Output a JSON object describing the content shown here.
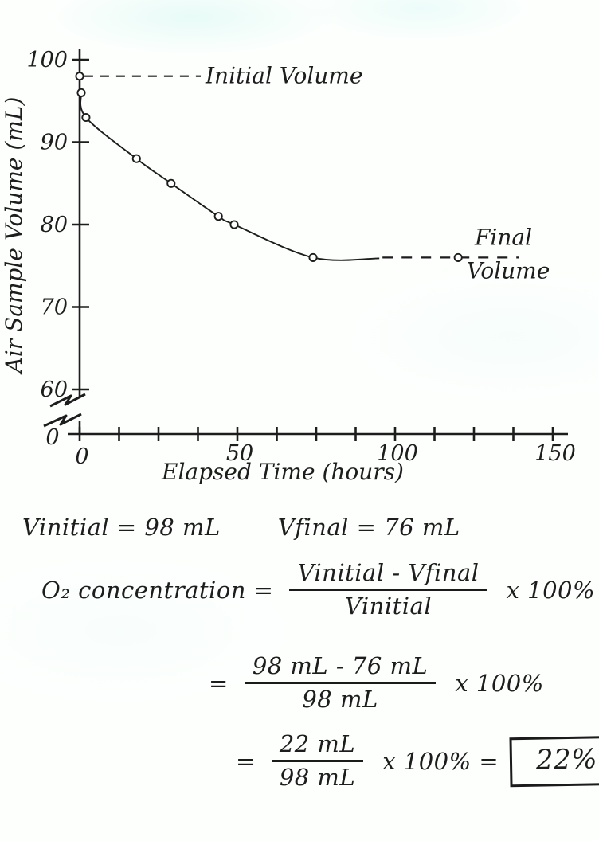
{
  "colors": {
    "ink": "#1d1d1d",
    "paper": "#fdfffd",
    "box_border": "#1b1b1b"
  },
  "chart_data": {
    "type": "scatter",
    "title": "",
    "xlabel": "Elapsed Time (hours)",
    "ylabel": "Air Sample Volume (mL)",
    "xlim": [
      0,
      150
    ],
    "ylim": [
      60,
      100
    ],
    "y_axis_break_to_zero": true,
    "grid": false,
    "x_tick_labels": [
      0,
      50,
      100,
      150
    ],
    "x_minor_tick_step": 12.5,
    "y_ticks": [
      100,
      90,
      80,
      70,
      60
    ],
    "origin_label": "0",
    "points": [
      [
        0,
        98
      ],
      [
        0.5,
        96
      ],
      [
        2,
        93
      ],
      [
        18,
        88
      ],
      [
        29,
        85
      ],
      [
        44,
        81
      ],
      [
        49,
        80
      ],
      [
        74,
        76
      ],
      [
        120,
        76
      ]
    ],
    "initial_volume": 98,
    "final_volume": 76,
    "annotations": [
      {
        "id": "initial",
        "label": "Initial Volume",
        "y": 98,
        "style": "dashed-leader"
      },
      {
        "id": "final",
        "label": "Final Volume",
        "y": 76,
        "style": "dashed-leader"
      }
    ]
  },
  "calculations": {
    "line1_left": "Vinitial = 98 mL",
    "line1_right": "Vfinal = 76 mL",
    "line2": {
      "lhs": "O₂ concentration =",
      "numerator": "Vinitial - Vfinal",
      "denominator": "Vinitial",
      "suffix": "x 100%"
    },
    "line3": {
      "eq": "=",
      "numerator": "98 mL - 76 mL",
      "denominator": "98 mL",
      "suffix": "x 100%"
    },
    "line4": {
      "eq": "=",
      "numerator": "22 mL",
      "denominator": "98 mL",
      "mid": "x 100% =",
      "result": "22%"
    }
  }
}
